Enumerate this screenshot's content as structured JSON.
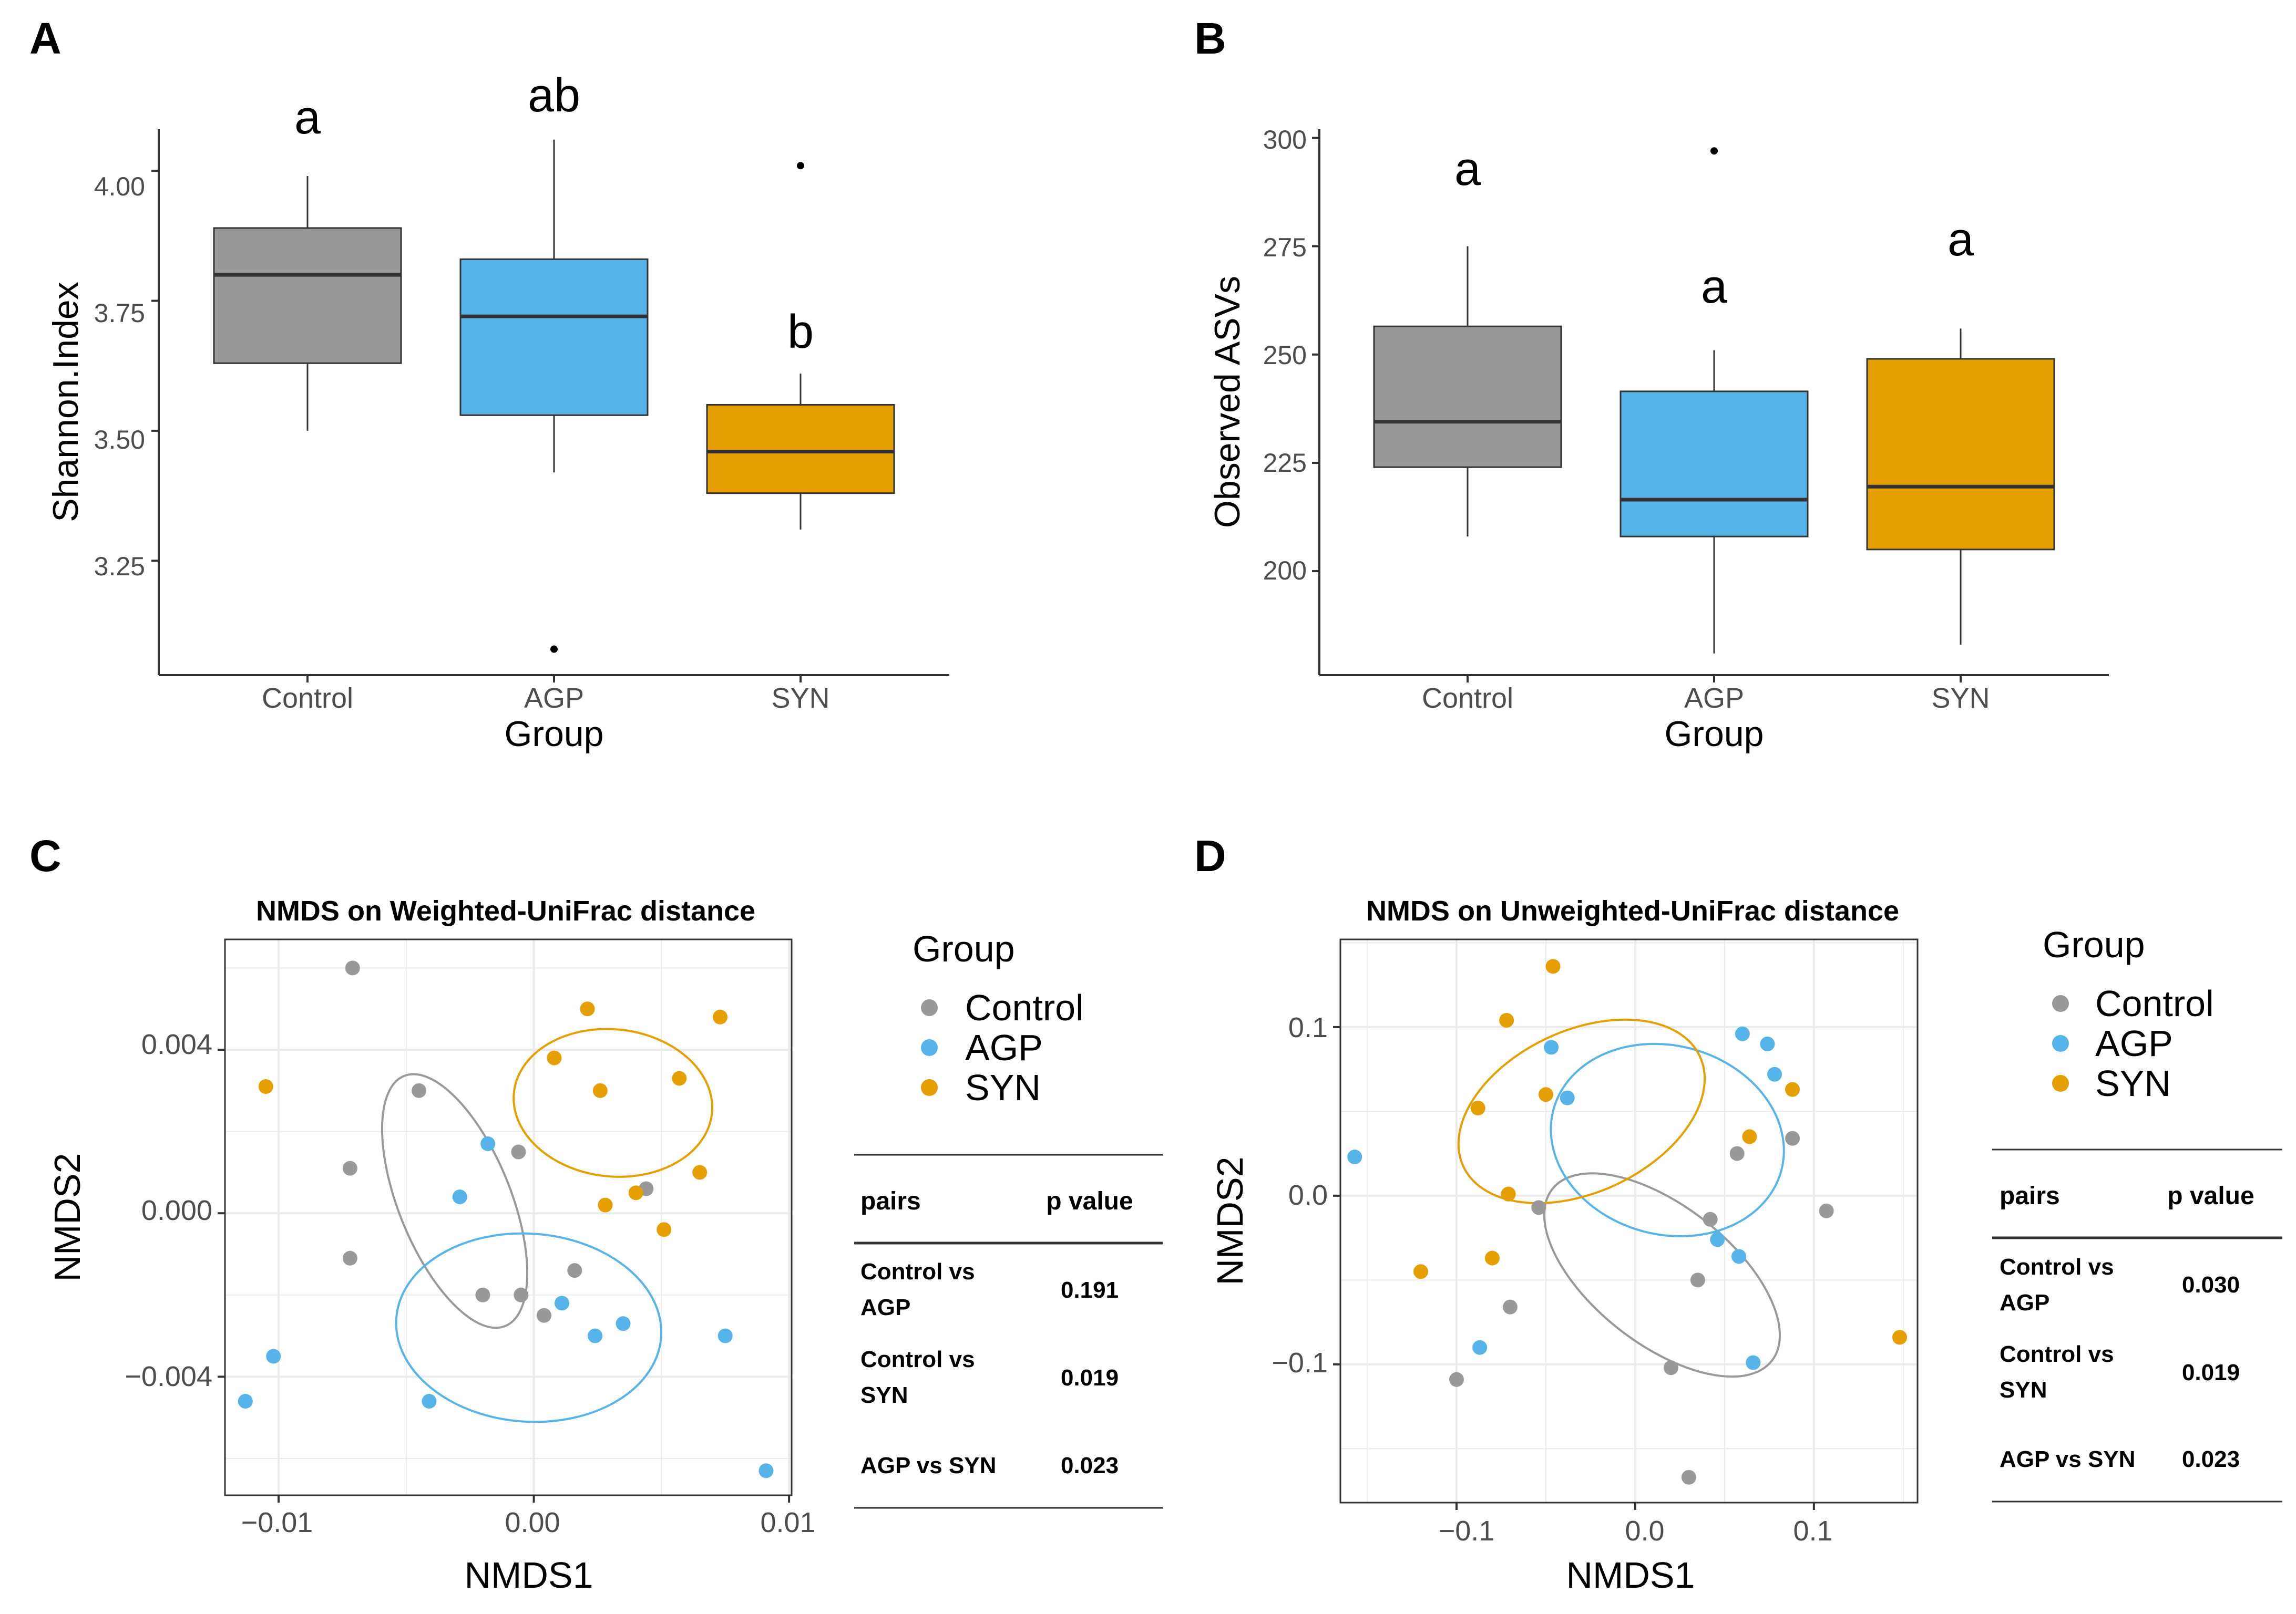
{
  "colors": {
    "Control": "#999999",
    "AGP": "#56B4E9",
    "SYN": "#E69F00",
    "axis": "#333333",
    "grid": "#ebebeb",
    "text": "#000000",
    "tick": "#4d4d4d"
  },
  "chart_data": [
    {
      "panel": "A",
      "type": "box",
      "xlabel": "Group",
      "ylabel": "Shannon.Index",
      "ylim": [
        3.03,
        4.08
      ],
      "yticks": [
        "3.25",
        "3.50",
        "3.75",
        "4.00"
      ],
      "categories": [
        "Control",
        "AGP",
        "SYN"
      ],
      "boxes": [
        {
          "group": "Control",
          "lower_whisker": 3.5,
          "q1": 3.63,
          "median": 3.8,
          "q3": 3.89,
          "upper_whisker": 3.99,
          "outliers": [],
          "letter": "a"
        },
        {
          "group": "AGP",
          "lower_whisker": 3.42,
          "q1": 3.53,
          "median": 3.72,
          "q3": 3.83,
          "upper_whisker": 4.06,
          "outliers": [
            3.08
          ],
          "letter": "ab"
        },
        {
          "group": "SYN",
          "lower_whisker": 3.31,
          "q1": 3.38,
          "median": 3.46,
          "q3": 3.55,
          "upper_whisker": 3.61,
          "outliers": [
            4.01
          ],
          "letter": "b"
        }
      ]
    },
    {
      "panel": "B",
      "type": "box",
      "xlabel": "Group",
      "ylabel": "Observed ASVs",
      "ylim": [
        176,
        302
      ],
      "yticks": [
        "200",
        "225",
        "250",
        "275",
        "300"
      ],
      "categories": [
        "Control",
        "AGP",
        "SYN"
      ],
      "boxes": [
        {
          "group": "Control",
          "lower_whisker": 208,
          "q1": 224,
          "median": 234.5,
          "q3": 256.5,
          "upper_whisker": 275,
          "outliers": [],
          "letter": "a"
        },
        {
          "group": "AGP",
          "lower_whisker": 181,
          "q1": 208,
          "median": 216.5,
          "q3": 241.5,
          "upper_whisker": 251,
          "outliers": [
            297
          ],
          "letter": "a"
        },
        {
          "group": "SYN",
          "lower_whisker": 183,
          "q1": 205,
          "median": 219.5,
          "q3": 249,
          "upper_whisker": 256,
          "outliers": [],
          "letter": "a"
        }
      ]
    },
    {
      "panel": "C",
      "type": "scatter",
      "title": "NMDS on Weighted-UniFrac distance",
      "xlabel": "NMDS1",
      "ylabel": "NMDS2",
      "xlim": [
        -0.0121,
        0.0101
      ],
      "ylim": [
        -0.0069,
        0.0067
      ],
      "xticks": [
        -0.01,
        0.0,
        0.01
      ],
      "xtick_labels": [
        "−0.01",
        "0.00",
        "0.01"
      ],
      "yticks": [
        -0.004,
        0.0,
        0.004
      ],
      "ytick_labels": [
        "−0.004",
        "0.000",
        "0.004"
      ],
      "legend_title": "Group",
      "legend": [
        "Control",
        "AGP",
        "SYN"
      ],
      "points": {
        "Control": [
          [
            -0.0071,
            0.006
          ],
          [
            -0.0045,
            0.003
          ],
          [
            -0.0072,
            0.0011
          ],
          [
            -0.0072,
            -0.0011
          ],
          [
            -0.0006,
            0.0015
          ],
          [
            -0.002,
            -0.002
          ],
          [
            -0.0005,
            -0.002
          ],
          [
            0.0004,
            -0.0025
          ],
          [
            0.0016,
            -0.0014
          ],
          [
            0.0044,
            0.0006
          ]
        ],
        "AGP": [
          [
            -0.0018,
            0.0017
          ],
          [
            -0.0029,
            0.0004
          ],
          [
            0.0011,
            -0.0022
          ],
          [
            0.0024,
            -0.003
          ],
          [
            0.0035,
            -0.0027
          ],
          [
            0.0075,
            -0.003
          ],
          [
            -0.0102,
            -0.0035
          ],
          [
            -0.0113,
            -0.0046
          ],
          [
            -0.0041,
            -0.0046
          ],
          [
            0.0091,
            -0.0063
          ]
        ],
        "SYN": [
          [
            -0.0105,
            0.0031
          ],
          [
            0.0021,
            0.005
          ],
          [
            0.0008,
            0.0038
          ],
          [
            0.0026,
            0.003
          ],
          [
            0.0057,
            0.0033
          ],
          [
            0.0073,
            0.0048
          ],
          [
            0.0028,
            0.0002
          ],
          [
            0.004,
            0.0005
          ],
          [
            0.0065,
            0.001
          ],
          [
            0.0051,
            -0.0004
          ]
        ]
      },
      "ellipses": {
        "Control": {
          "center": [
            -0.0031,
            0.0003
          ],
          "rx": 0.0022,
          "ry": 0.0033,
          "angle_deg": -22
        },
        "AGP": {
          "center": [
            -0.0002,
            -0.0028
          ],
          "rx": 0.0052,
          "ry": 0.0023,
          "angle_deg": 4
        },
        "SYN": {
          "center": [
            0.0031,
            0.0027
          ],
          "rx": 0.0039,
          "ry": 0.0018,
          "angle_deg": 6
        }
      },
      "table": {
        "headers": [
          "pairs",
          "p value"
        ],
        "rows": [
          [
            "Control vs AGP",
            "0.191"
          ],
          [
            "Control vs SYN",
            "0.019"
          ],
          [
            "AGP vs SYN",
            "0.023"
          ]
        ]
      }
    },
    {
      "panel": "D",
      "type": "scatter",
      "title": "NMDS on Unweighted-UniFrac distance",
      "xlabel": "NMDS1",
      "ylabel": "NMDS2",
      "xlim": [
        -0.165,
        0.158
      ],
      "ylim": [
        -0.182,
        0.152
      ],
      "xticks": [
        -0.1,
        0.0,
        0.1
      ],
      "xtick_labels": [
        "−0.1",
        "0.0",
        "0.1"
      ],
      "yticks": [
        -0.1,
        0.0,
        0.1
      ],
      "ytick_labels": [
        "−0.1",
        "0.0",
        "0.1"
      ],
      "legend_title": "Group",
      "legend": [
        "Control",
        "AGP",
        "SYN"
      ],
      "points": {
        "Control": [
          [
            -0.1,
            -0.109
          ],
          [
            -0.07,
            -0.066
          ],
          [
            -0.054,
            -0.007
          ],
          [
            0.02,
            -0.102
          ],
          [
            0.035,
            -0.05
          ],
          [
            0.042,
            -0.014
          ],
          [
            0.057,
            0.025
          ],
          [
            0.088,
            0.034
          ],
          [
            0.107,
            -0.009
          ],
          [
            0.03,
            -0.167
          ]
        ],
        "AGP": [
          [
            -0.157,
            0.023
          ],
          [
            -0.087,
            -0.09
          ],
          [
            -0.047,
            0.088
          ],
          [
            -0.038,
            0.058
          ],
          [
            0.046,
            -0.026
          ],
          [
            0.058,
            -0.036
          ],
          [
            0.06,
            0.096
          ],
          [
            0.074,
            0.09
          ],
          [
            0.078,
            0.072
          ],
          [
            0.066,
            -0.099
          ]
        ],
        "SYN": [
          [
            -0.046,
            0.136
          ],
          [
            -0.072,
            0.104
          ],
          [
            -0.088,
            0.052
          ],
          [
            -0.05,
            0.06
          ],
          [
            -0.071,
            0.001
          ],
          [
            -0.08,
            -0.037
          ],
          [
            -0.12,
            -0.045
          ],
          [
            0.064,
            0.035
          ],
          [
            0.088,
            0.063
          ],
          [
            0.148,
            -0.084
          ]
        ]
      },
      "ellipses": {
        "Control": {
          "center": [
            0.015,
            -0.047
          ],
          "rx": 0.078,
          "ry": 0.041,
          "angle_deg": 38
        },
        "AGP": {
          "center": [
            0.018,
            0.033
          ],
          "rx": 0.066,
          "ry": 0.056,
          "angle_deg": 15
        },
        "SYN": {
          "center": [
            -0.03,
            0.05
          ],
          "rx": 0.073,
          "ry": 0.048,
          "angle_deg": -25
        }
      },
      "table": {
        "headers": [
          "pairs",
          "p value"
        ],
        "rows": [
          [
            "Control vs AGP",
            "0.030"
          ],
          [
            "Control vs SYN",
            "0.019"
          ],
          [
            "AGP vs SYN",
            "0.023"
          ]
        ]
      }
    }
  ]
}
